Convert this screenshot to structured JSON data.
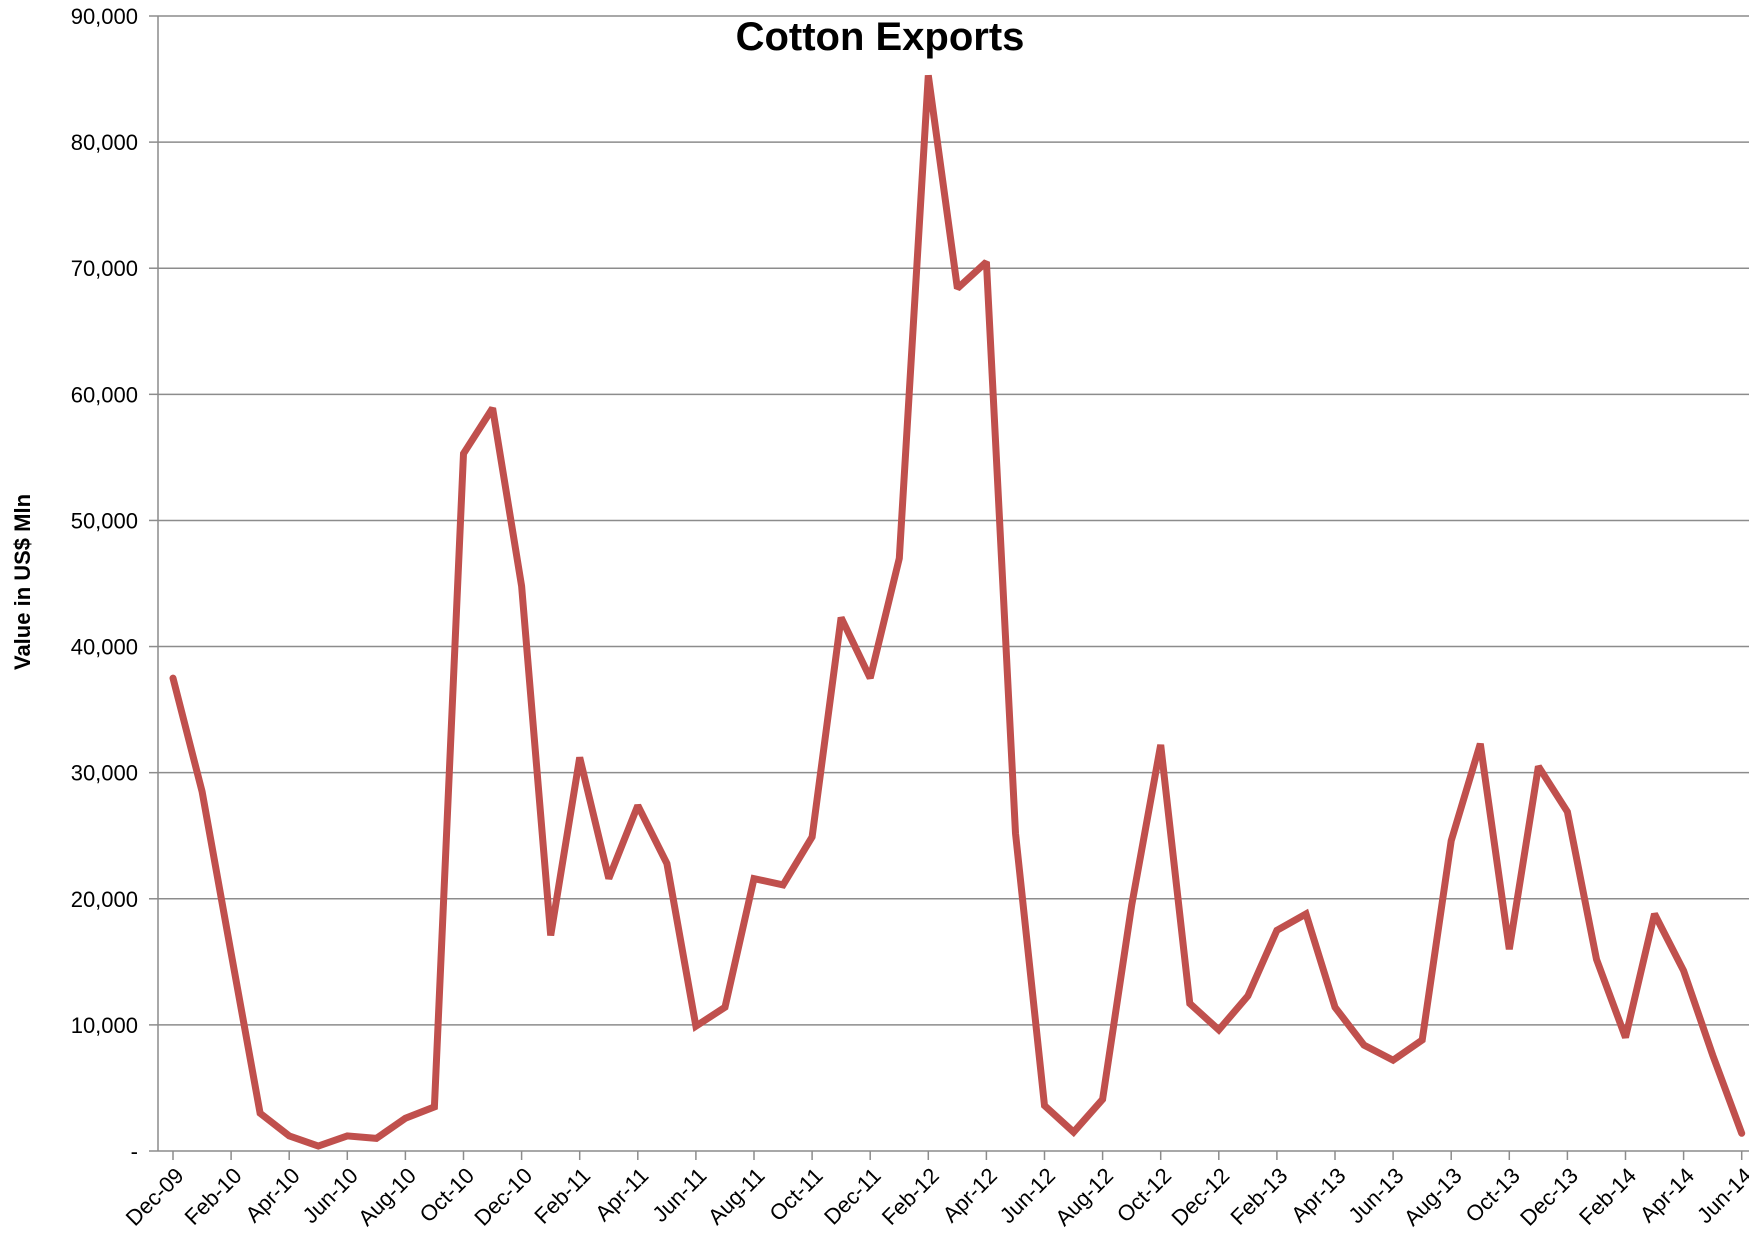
{
  "chart_data": {
    "type": "line",
    "title": "Cotton Exports",
    "xlabel": "",
    "ylabel": "Value in US$ Mln",
    "ylim": [
      0,
      90000
    ],
    "grid": true,
    "line_color": "#C0504D",
    "y_ticks": [
      0,
      10000,
      20000,
      30000,
      40000,
      50000,
      60000,
      70000,
      80000,
      90000
    ],
    "y_tick_labels": [
      "-",
      "10,000",
      "20,000",
      "30,000",
      "40,000",
      "50,000",
      "60,000",
      "70,000",
      "80,000",
      "90,000"
    ],
    "x_tick_labels": [
      "Dec-09",
      "Feb-10",
      "Apr-10",
      "Jun-10",
      "Aug-10",
      "Oct-10",
      "Dec-10",
      "Feb-11",
      "Apr-11",
      "Jun-11",
      "Aug-11",
      "Oct-11",
      "Dec-11",
      "Feb-12",
      "Apr-12",
      "Jun-12",
      "Aug-12",
      "Oct-12",
      "Dec-12",
      "Feb-13",
      "Apr-13",
      "Jun-13",
      "Aug-13",
      "Oct-13",
      "Dec-13",
      "Feb-14",
      "Apr-14",
      "Jun-14"
    ],
    "categories": [
      "Dec-09",
      "Jan-10",
      "Feb-10",
      "Mar-10",
      "Apr-10",
      "May-10",
      "Jun-10",
      "Jul-10",
      "Aug-10",
      "Sep-10",
      "Oct-10",
      "Nov-10",
      "Dec-10",
      "Jan-11",
      "Feb-11",
      "Mar-11",
      "Apr-11",
      "May-11",
      "Jun-11",
      "Jul-11",
      "Aug-11",
      "Sep-11",
      "Oct-11",
      "Nov-11",
      "Dec-11",
      "Jan-12",
      "Feb-12",
      "Mar-12",
      "Apr-12",
      "May-12",
      "Jun-12",
      "Jul-12",
      "Aug-12",
      "Sep-12",
      "Oct-12",
      "Nov-12",
      "Dec-12",
      "Jan-13",
      "Feb-13",
      "Mar-13",
      "Apr-13",
      "May-13",
      "Jun-13",
      "Jul-13",
      "Aug-13",
      "Sep-13",
      "Oct-13",
      "Nov-13",
      "Dec-13",
      "Jan-14",
      "Feb-14",
      "Mar-14",
      "Apr-14",
      "May-14",
      "Jun-14"
    ],
    "series": [
      {
        "values": [
          37500,
          28500,
          15700,
          3000,
          1200,
          400,
          1200,
          1000,
          2600,
          3500,
          55300,
          58900,
          44800,
          17100,
          31200,
          21600,
          27400,
          22800,
          9900,
          11400,
          21600,
          21100,
          24900,
          42300,
          37500,
          47000,
          85300,
          68400,
          70500,
          25200,
          3600,
          1500,
          4100,
          19500,
          32200,
          11700,
          9600,
          12300,
          17500,
          18800,
          11400,
          8400,
          7200,
          8800,
          24600,
          32300,
          16000,
          30500,
          26900,
          15200,
          9000,
          18800,
          14300,
          7600,
          1400
        ]
      }
    ]
  }
}
